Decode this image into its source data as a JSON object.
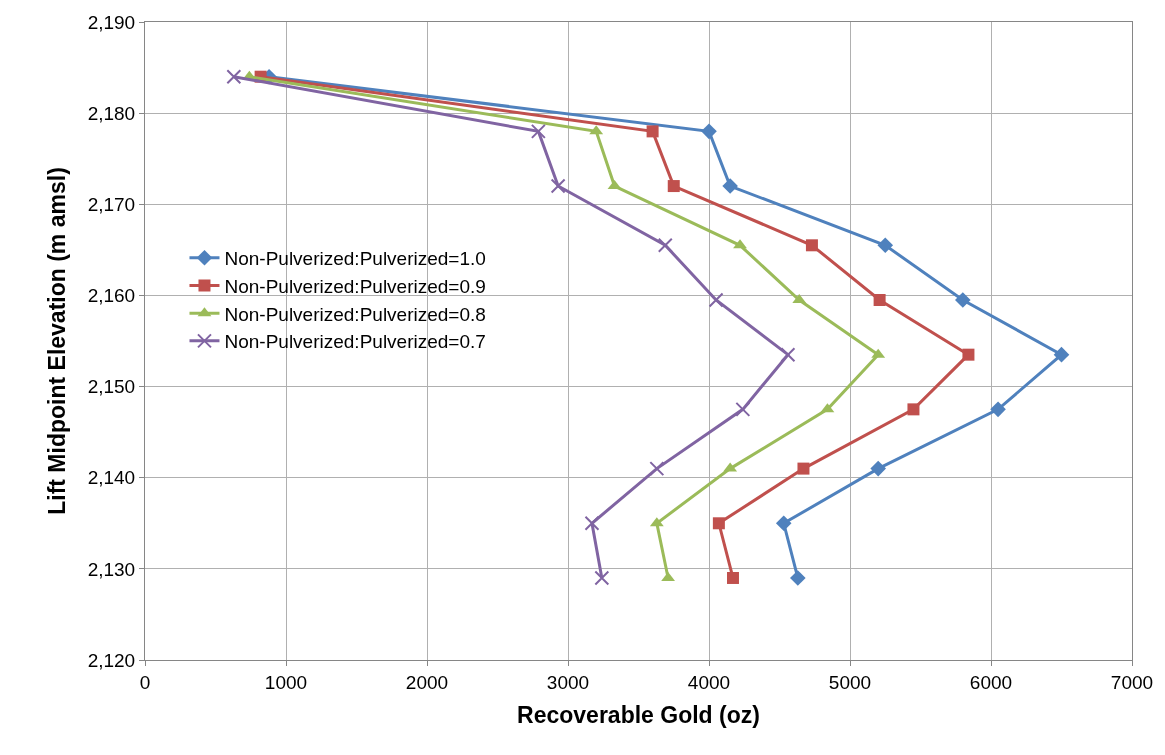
{
  "chart_data": {
    "type": "line",
    "xlabel": "Recoverable Gold (oz)",
    "ylabel": "Lift Midpoint Elevation (m amsl)",
    "xlim": [
      0,
      7000
    ],
    "xticks": [
      0,
      1000,
      2000,
      3000,
      4000,
      5000,
      6000,
      7000
    ],
    "ylim": [
      2120,
      2190
    ],
    "yticks": [
      {
        "value": 2120,
        "label": "2,120"
      },
      {
        "value": 2130,
        "label": "2,130"
      },
      {
        "value": 2140,
        "label": "2,140"
      },
      {
        "value": 2150,
        "label": "2,150"
      },
      {
        "value": 2160,
        "label": "2,160"
      },
      {
        "value": 2170,
        "label": "2,170"
      },
      {
        "value": 2180,
        "label": "2,180"
      },
      {
        "value": 2190,
        "label": "2,190"
      }
    ],
    "grid": true,
    "legend": "left",
    "line_style": "solid",
    "series": [
      {
        "name": "Non-Pulverized:Pulverized=1.0",
        "color": "#4f81bd",
        "marker": "diamond",
        "x": [
          880,
          4000,
          4150,
          5250,
          5800,
          6500,
          6050,
          5200,
          4530,
          4630
        ],
        "values": [
          2184,
          2178,
          2172,
          2165.5,
          2159.5,
          2153.5,
          2147.5,
          2141,
          2135,
          2129
        ]
      },
      {
        "name": "Non-Pulverized:Pulverized=0.9",
        "color": "#c0504d",
        "marker": "square",
        "x": [
          820,
          3600,
          3750,
          4730,
          5210,
          5840,
          5450,
          4670,
          4070,
          4170
        ],
        "values": [
          2184,
          2178,
          2172,
          2165.5,
          2159.5,
          2153.5,
          2147.5,
          2141,
          2135,
          2129
        ]
      },
      {
        "name": "Non-Pulverized:Pulverized=0.8",
        "color": "#9bbb59",
        "marker": "triangle",
        "x": [
          740,
          3200,
          3330,
          4220,
          4640,
          5200,
          4840,
          4150,
          3630,
          3710
        ],
        "values": [
          2184,
          2178,
          2172,
          2165.5,
          2159.5,
          2153.5,
          2147.5,
          2141,
          2135,
          2129
        ]
      },
      {
        "name": "Non-Pulverized:Pulverized=0.7",
        "color": "#8064a2",
        "marker": "cross",
        "x": [
          630,
          2790,
          2930,
          3690,
          4050,
          4560,
          4240,
          3630,
          3170,
          3240
        ],
        "values": [
          2184,
          2178,
          2172,
          2165.5,
          2159.5,
          2153.5,
          2147.5,
          2141,
          2135,
          2129
        ]
      }
    ]
  }
}
